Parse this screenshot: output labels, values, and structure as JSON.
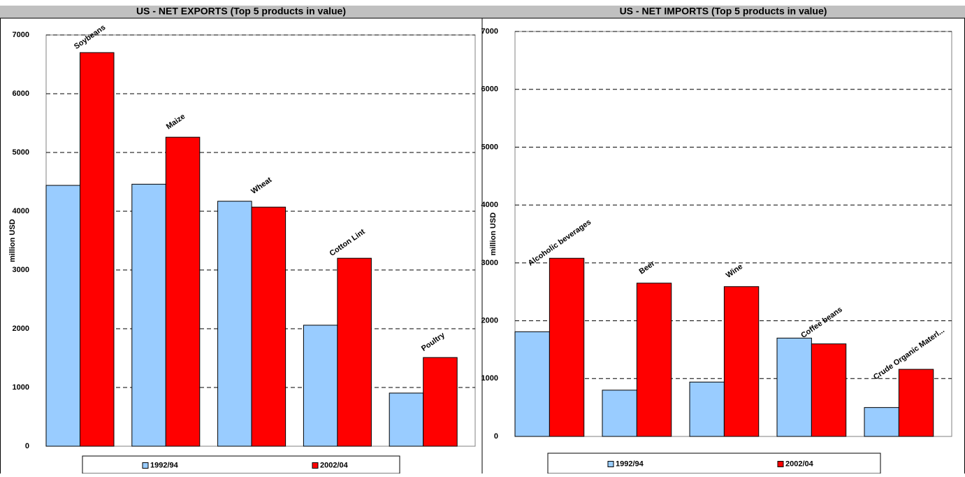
{
  "chart_data": [
    {
      "type": "bar",
      "title": "US - NET EXPORTS (Top 5 products in value)",
      "y_label": "million USD",
      "categories": [
        "Soybeans",
        "Maize",
        "Wheat",
        "Cotton Lint",
        "Poultry"
      ],
      "series": [
        {
          "name": "1992/94",
          "color": "#99ccff",
          "values": [
            4440,
            4460,
            4170,
            2060,
            905
          ]
        },
        {
          "name": "2002/04",
          "color": "#ff0000",
          "values": [
            6700,
            5260,
            4070,
            3200,
            1510
          ]
        }
      ],
      "ylim": [
        0,
        7000
      ],
      "yticks": [
        0,
        1000,
        2000,
        3000,
        4000,
        5000,
        6000,
        7000
      ],
      "grid": true,
      "legend": "bottom"
    },
    {
      "type": "bar",
      "title": "US - NET IMPORTS (Top 5 products in value)",
      "y_label": "million USD",
      "categories": [
        "Alcoholic beverages",
        "Beer",
        "Wine",
        "Coffee beans",
        "Crude Organic Materl..."
      ],
      "series": [
        {
          "name": "1992/94",
          "color": "#99ccff",
          "values": [
            1810,
            800,
            940,
            1700,
            500
          ]
        },
        {
          "name": "2002/04",
          "color": "#ff0000",
          "values": [
            3080,
            2650,
            2590,
            1600,
            1160
          ]
        }
      ],
      "ylim": [
        0,
        7000
      ],
      "yticks": [
        0,
        1000,
        2000,
        3000,
        4000,
        5000,
        6000,
        7000
      ],
      "grid": true,
      "legend": "bottom"
    }
  ]
}
